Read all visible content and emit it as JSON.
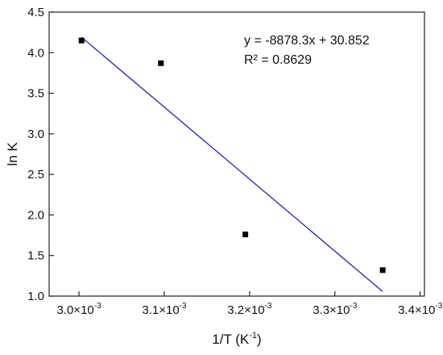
{
  "chart_data": {
    "type": "scatter",
    "xlabel_main": "1/T (K",
    "xlabel_sup": "-1",
    "xlabel_close": ")",
    "ylabel": "ln K",
    "xlim": [
      0.002965,
      0.003405
    ],
    "ylim": [
      1.0,
      4.5
    ],
    "x_ticks": [
      {
        "value": 0.003,
        "mantissa": "3.0×10",
        "exp": "-3"
      },
      {
        "value": 0.0031,
        "mantissa": "3.1×10",
        "exp": "-3"
      },
      {
        "value": 0.0032,
        "mantissa": "3.2×10",
        "exp": "-3"
      },
      {
        "value": 0.0033,
        "mantissa": "3.3×10",
        "exp": "-3"
      },
      {
        "value": 0.0034,
        "mantissa": "3.4×10",
        "exp": "-3"
      }
    ],
    "y_ticks": [
      {
        "value": 1.0,
        "label": "1.0"
      },
      {
        "value": 1.5,
        "label": "1.5"
      },
      {
        "value": 2.0,
        "label": "2.0"
      },
      {
        "value": 2.5,
        "label": "2.5"
      },
      {
        "value": 3.0,
        "label": "3.0"
      },
      {
        "value": 3.5,
        "label": "3.5"
      },
      {
        "value": 4.0,
        "label": "4.0"
      },
      {
        "value": 4.5,
        "label": "4.5"
      }
    ],
    "points": [
      {
        "x": 0.003003,
        "y": 4.15
      },
      {
        "x": 0.003096,
        "y": 3.87
      },
      {
        "x": 0.003195,
        "y": 1.76
      },
      {
        "x": 0.003356,
        "y": 1.32
      }
    ],
    "fit": {
      "slope": -8878.3,
      "intercept": 30.852,
      "x_range": [
        0.003003,
        0.003356
      ],
      "color": "#2020c0"
    },
    "equation": "y = -8878.3x + 30.852",
    "r_squared": "R² = 0.8629",
    "grid": false,
    "point_color": "#000000"
  }
}
